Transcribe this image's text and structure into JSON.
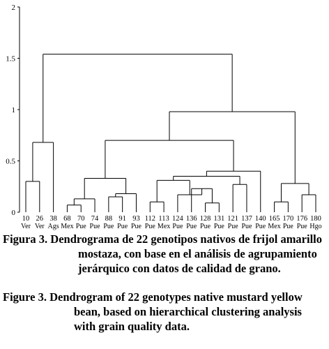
{
  "chart_data": {
    "type": "dendrogram",
    "ylim": [
      0,
      2
    ],
    "yticks": [
      "2",
      "1.5",
      "1",
      "0.5",
      "0"
    ],
    "leaves": [
      {
        "id": "10",
        "origin": "Ver"
      },
      {
        "id": "26",
        "origin": "Ver"
      },
      {
        "id": "38",
        "origin": "Ags"
      },
      {
        "id": "68",
        "origin": "Mex"
      },
      {
        "id": "70",
        "origin": "Pue"
      },
      {
        "id": "74",
        "origin": "Pue"
      },
      {
        "id": "88",
        "origin": "Pue"
      },
      {
        "id": "91",
        "origin": "Pue"
      },
      {
        "id": "93",
        "origin": "Pue"
      },
      {
        "id": "112",
        "origin": "Pue"
      },
      {
        "id": "113",
        "origin": "Mex"
      },
      {
        "id": "124",
        "origin": "Pue"
      },
      {
        "id": "136",
        "origin": "Pue"
      },
      {
        "id": "128",
        "origin": "Pue"
      },
      {
        "id": "131",
        "origin": "Pue"
      },
      {
        "id": "121",
        "origin": "Pue"
      },
      {
        "id": "137",
        "origin": "Pue"
      },
      {
        "id": "140",
        "origin": "Pue"
      },
      {
        "id": "165",
        "origin": "Mex"
      },
      {
        "id": "170",
        "origin": "Pue"
      },
      {
        "id": "176",
        "origin": "Pue"
      },
      {
        "id": "180",
        "origin": "Hgo"
      }
    ],
    "merges": [
      {
        "id": "m1",
        "left": "L0",
        "right": "L1",
        "height": 0.3
      },
      {
        "id": "m2",
        "left": "m1",
        "right": "L2",
        "height": 0.68
      },
      {
        "id": "m3",
        "left": "L3",
        "right": "L4",
        "height": 0.07
      },
      {
        "id": "m4",
        "left": "m3",
        "right": "L5",
        "height": 0.13
      },
      {
        "id": "m5",
        "left": "L6",
        "right": "L7",
        "height": 0.15
      },
      {
        "id": "m6",
        "left": "m5",
        "right": "L8",
        "height": 0.18
      },
      {
        "id": "m7",
        "left": "m4",
        "right": "m6",
        "height": 0.33
      },
      {
        "id": "m8",
        "left": "L9",
        "right": "L10",
        "height": 0.1
      },
      {
        "id": "m9",
        "left": "L13",
        "right": "L14",
        "height": 0.09
      },
      {
        "id": "m10",
        "left": "L12",
        "right": "m9",
        "height": 0.23
      },
      {
        "id": "m11",
        "left": "L11",
        "right": "m10",
        "height": 0.17
      },
      {
        "id": "m12",
        "left": "L15",
        "right": "L16",
        "height": 0.27
      },
      {
        "id": "m13",
        "left": "m8",
        "right": "m11",
        "height": 0.31
      },
      {
        "id": "m14",
        "left": "m13",
        "right": "m12",
        "height": 0.35
      },
      {
        "id": "m15",
        "left": "m14",
        "right": "L17",
        "height": 0.4
      },
      {
        "id": "m16",
        "left": "m7",
        "right": "m15",
        "height": 0.7
      },
      {
        "id": "m17",
        "left": "L18",
        "right": "L19",
        "height": 0.1
      },
      {
        "id": "m18",
        "left": "L20",
        "right": "L21",
        "height": 0.17
      },
      {
        "id": "m19",
        "left": "m17",
        "right": "m18",
        "height": 0.28
      },
      {
        "id": "m20",
        "left": "m16",
        "right": "m19",
        "height": 0.98
      },
      {
        "id": "m21",
        "left": "m2",
        "right": "m20",
        "height": 1.54
      }
    ]
  },
  "caption_es": {
    "label": "Figura 3.",
    "text": "Dendrograma de 22 genotipos nativos de frijol amarillo mostaza, con base en el análisis de agrupamiento jerárquico con datos de calidad de grano."
  },
  "caption_en": {
    "label": "Figure 3.",
    "text": "Dendrogram of 22 genotypes native mustard yellow bean, based on hierarchical clustering analysis with grain quality data."
  }
}
